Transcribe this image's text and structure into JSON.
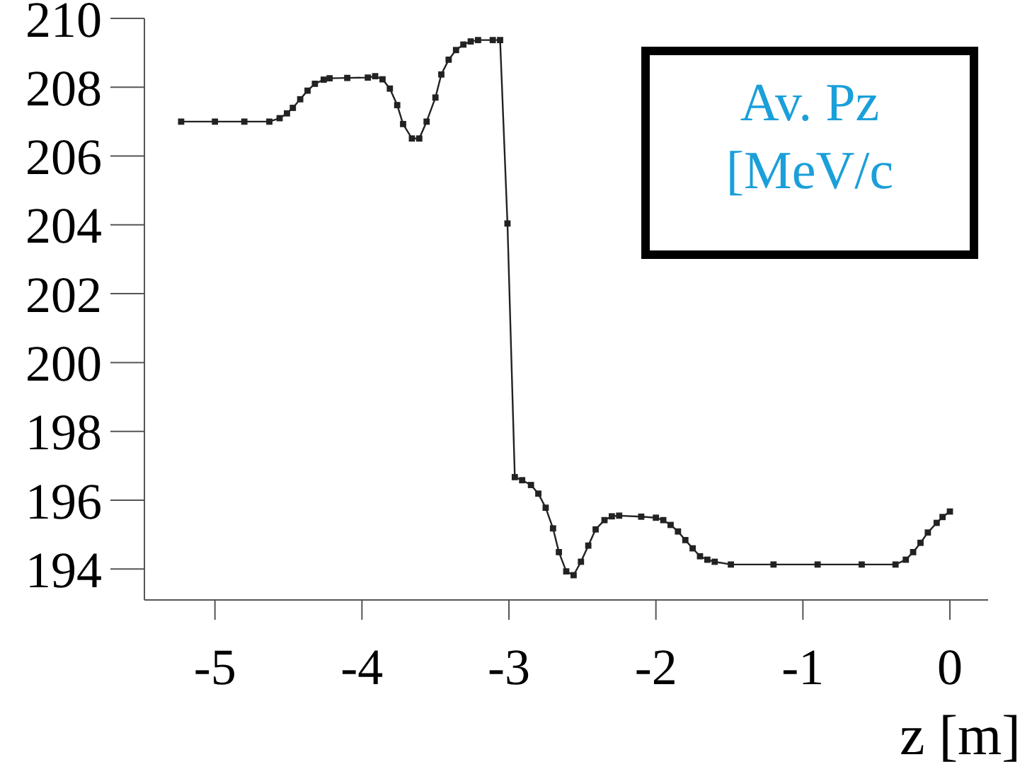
{
  "chart_data": {
    "type": "line",
    "xlabel": "z [m]",
    "annotations": [
      "Av. Pz\n[MeV/c"
    ],
    "xlim": [
      -5.48,
      0.26
    ],
    "xticks": [
      -5,
      -4,
      -3,
      -2,
      -1,
      0
    ],
    "ylim": [
      193.1,
      210
    ],
    "yticks": [
      194,
      196,
      198,
      200,
      202,
      204,
      206,
      208,
      210
    ],
    "marker": "square",
    "line_style": "solid",
    "x": [
      -5.23,
      -5.0,
      -4.8,
      -4.63,
      -4.56,
      -4.51,
      -4.47,
      -4.42,
      -4.37,
      -4.32,
      -4.26,
      -4.22,
      -4.1,
      -3.96,
      -3.91,
      -3.86,
      -3.81,
      -3.76,
      -3.72,
      -3.66,
      -3.61,
      -3.56,
      -3.5,
      -3.46,
      -3.41,
      -3.36,
      -3.31,
      -3.26,
      -3.21,
      -3.11,
      -3.06,
      -3.01,
      -2.96,
      -2.91,
      -2.85,
      -2.8,
      -2.75,
      -2.7,
      -2.66,
      -2.61,
      -2.56,
      -2.51,
      -2.46,
      -2.41,
      -2.35,
      -2.3,
      -2.25,
      -2.1,
      -2.0,
      -1.95,
      -1.9,
      -1.85,
      -1.8,
      -1.75,
      -1.7,
      -1.65,
      -1.6,
      -1.49,
      -1.2,
      -0.9,
      -0.6,
      -0.37,
      -0.3,
      -0.25,
      -0.2,
      -0.15,
      -0.09,
      -0.05,
      0.0
    ],
    "series": [
      {
        "color": "#222222",
        "values": [
          207.0,
          207.0,
          207.0,
          207.0,
          207.1,
          207.24,
          207.4,
          207.65,
          207.9,
          208.1,
          208.22,
          208.26,
          208.27,
          208.28,
          208.32,
          208.23,
          207.96,
          207.48,
          206.93,
          206.51,
          206.51,
          207.0,
          207.7,
          208.37,
          208.8,
          209.08,
          209.24,
          209.33,
          209.37,
          209.37,
          209.37,
          204.04,
          196.67,
          196.58,
          196.44,
          196.19,
          195.78,
          195.18,
          194.49,
          193.93,
          193.82,
          194.21,
          194.68,
          195.15,
          195.42,
          195.53,
          195.55,
          195.52,
          195.49,
          195.42,
          195.28,
          195.09,
          194.84,
          194.6,
          194.37,
          194.27,
          194.21,
          194.13,
          194.13,
          194.13,
          194.13,
          194.13,
          194.27,
          194.49,
          194.76,
          195.06,
          195.34,
          195.51,
          195.67
        ]
      }
    ]
  }
}
